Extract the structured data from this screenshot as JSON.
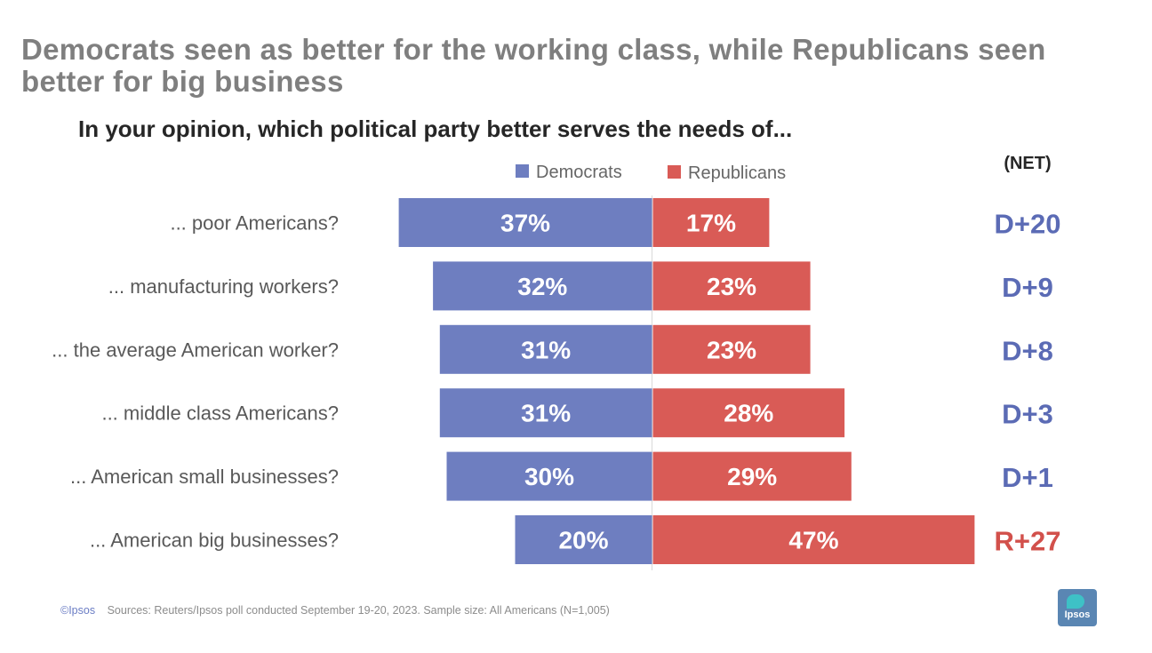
{
  "title": "Democrats seen as better for the working class, while Republicans seen better for big business",
  "subtitle": "In your opinion, which political party better serves the needs of...",
  "chart_data": {
    "type": "bar",
    "orientation": "horizontal-diverging",
    "categories": [
      "... poor Americans?",
      "... manufacturing workers?",
      "... the average American worker?",
      "... middle class Americans?",
      "... American small businesses?",
      "... American big businesses?"
    ],
    "series": [
      {
        "name": "Democrats",
        "values": [
          37,
          32,
          31,
          31,
          30,
          20
        ],
        "color": "#6e7ec0"
      },
      {
        "name": "Republicans",
        "values": [
          17,
          23,
          23,
          28,
          29,
          47
        ],
        "color": "#d95b56"
      }
    ],
    "value_labels": {
      "Democrats": [
        "37%",
        "32%",
        "31%",
        "31%",
        "30%",
        "20%"
      ],
      "Republicans": [
        "17%",
        "23%",
        "23%",
        "28%",
        "29%",
        "47%"
      ]
    },
    "net_header": "(NET)",
    "net": [
      {
        "label": "D+20",
        "party": "D"
      },
      {
        "label": "D+9",
        "party": "D"
      },
      {
        "label": "D+8",
        "party": "D"
      },
      {
        "label": "D+3",
        "party": "D"
      },
      {
        "label": "D+1",
        "party": "D"
      },
      {
        "label": "R+27",
        "party": "R"
      }
    ],
    "net_colors": {
      "D": "#5b6bb5",
      "R": "#d2504b"
    },
    "legend_position": "top"
  },
  "footer": {
    "copyright": "©Ipsos",
    "source": "Sources: Reuters/Ipsos poll conducted September 19-20, 2023. Sample size: All Americans (N=1,005)"
  },
  "logo_text": "Ipsos"
}
